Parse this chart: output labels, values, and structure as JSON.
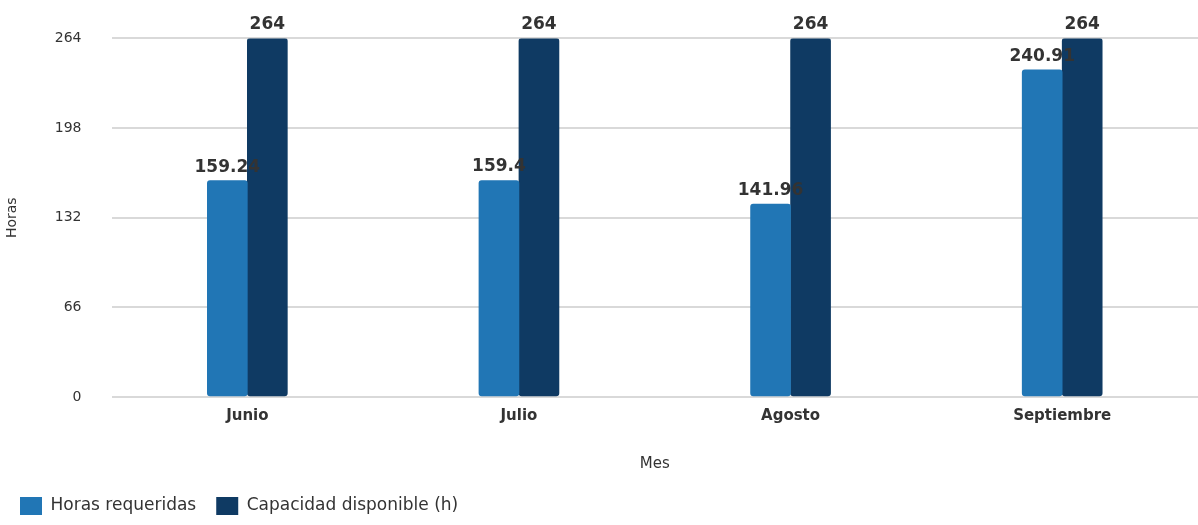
{
  "chart_data": {
    "type": "bar",
    "xlabel": "Mes",
    "ylabel": "Horas",
    "categories": [
      "Junio",
      "Julio",
      "Agosto",
      "Septiembre"
    ],
    "series": [
      {
        "name": "Horas requeridas",
        "color": "#2176b5",
        "values": [
          159.24,
          159.4,
          141.96,
          240.91
        ]
      },
      {
        "name": "Capacidad disponible (h)",
        "color": "#0f3a63",
        "values": [
          264,
          264,
          264,
          264
        ]
      }
    ],
    "ylim": [
      0,
      264
    ],
    "yticks": [
      0,
      66,
      132,
      198,
      264
    ],
    "grid": "y",
    "legend": "bottom left",
    "data_labels": true
  }
}
